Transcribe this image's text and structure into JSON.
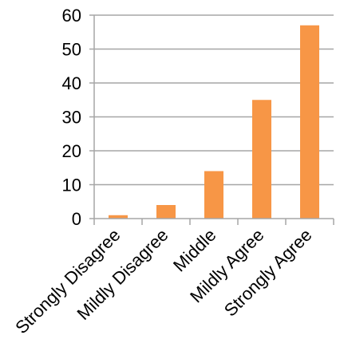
{
  "chart_data": {
    "type": "bar",
    "categories": [
      "Strongly Disagree",
      "Mildly Disagree",
      "Middle",
      "Mildly Agree",
      "Strongly Agree"
    ],
    "values": [
      1,
      4,
      14,
      35,
      57
    ],
    "ylim": [
      0,
      60
    ],
    "yticks": [
      0,
      10,
      20,
      30,
      40,
      50,
      60
    ],
    "grid": true,
    "legend": "none",
    "bar_color": "#F79646",
    "grid_color": "#A6A6A6",
    "axis_color": "#A6A6A6",
    "text_color": "#000000"
  }
}
